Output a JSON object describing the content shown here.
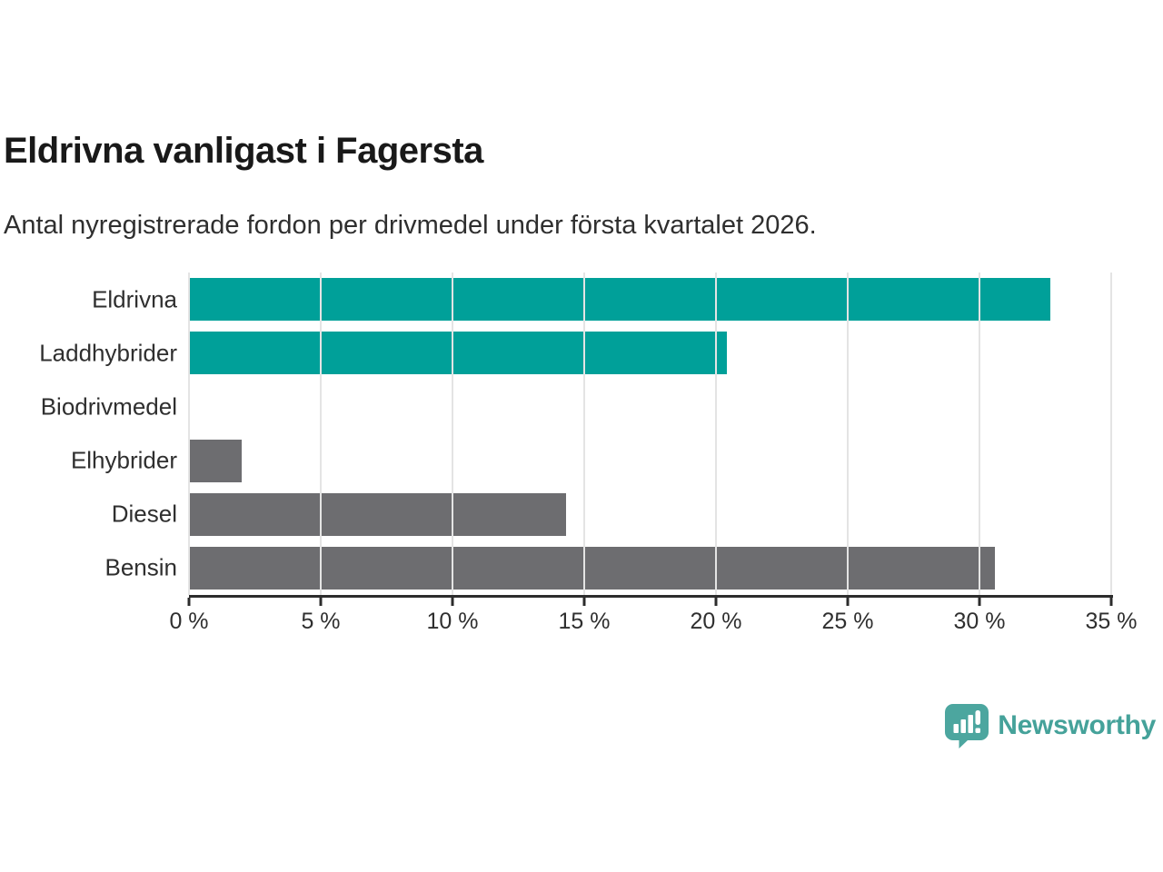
{
  "header": {
    "title": "Eldrivna vanligast i Fagersta",
    "subtitle": "Antal nyregistrerade fordon per drivmedel under första kvartalet 2026."
  },
  "chart_data": {
    "type": "bar",
    "orientation": "horizontal",
    "title": "Eldrivna vanligast i Fagersta",
    "subtitle": "Antal nyregistrerade fordon per drivmedel under första kvartalet 2026.",
    "categories": [
      "Eldrivna",
      "Laddhybrider",
      "Biodrivmedel",
      "Elhybrider",
      "Diesel",
      "Bensin"
    ],
    "values": [
      32.7,
      20.4,
      0,
      2.0,
      14.3,
      30.6
    ],
    "unit": "%",
    "xlim": [
      0,
      35
    ],
    "xtick_step": 5,
    "xticks": [
      "0 %",
      "5 %",
      "10 %",
      "15 %",
      "20 %",
      "25 %",
      "30 %",
      "35 %"
    ],
    "bar_colors": [
      "#00a099",
      "#00a099",
      "#6d6d70",
      "#6d6d70",
      "#6d6d70",
      "#6d6d70"
    ],
    "grid": "vertical-only",
    "legend": "none"
  },
  "colors": {
    "accent_teal": "#00a099",
    "neutral_gray": "#6d6d70",
    "gridline": "#e4e4e4",
    "axis": "#2c2c2c",
    "text": "#2f2f2f",
    "logo_teal": "#45a29a"
  },
  "logo": {
    "text": "Newsworthy",
    "icon": "newsworthy-speech-bubble-chart-icon"
  }
}
